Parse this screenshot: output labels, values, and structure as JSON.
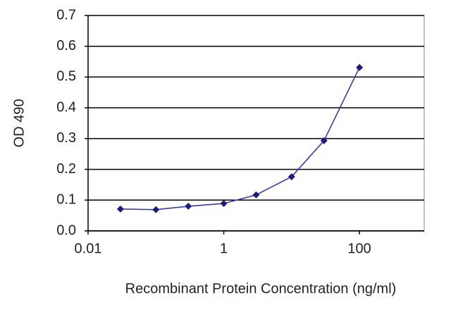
{
  "chart_data": {
    "type": "line",
    "x_label": "Recombinant Protein Concentration (ng/ml)",
    "y_label": "OD 490",
    "x_scale": "log",
    "x": [
      0.03,
      0.1,
      0.3,
      1,
      3,
      10,
      30,
      100
    ],
    "series": [
      {
        "color": "#3a3aa8",
        "marker_color": "#1c1c80",
        "values": [
          0.071,
          0.069,
          0.08,
          0.089,
          0.117,
          0.176,
          0.293,
          0.531
        ]
      }
    ],
    "xlim": [
      0.01,
      900
    ],
    "xticks": [
      0.01,
      1,
      100
    ],
    "ylim": [
      0,
      0.7
    ],
    "yticks": [
      {
        "value": 0,
        "label": "0.0"
      },
      0.1,
      0.2,
      0.3,
      0.4,
      0.5,
      0.6,
      0.7
    ],
    "grid": true
  }
}
